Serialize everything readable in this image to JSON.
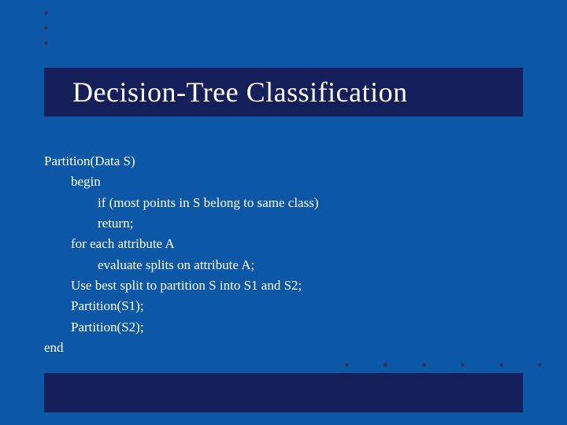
{
  "slide": {
    "background_color": "#0d57a7",
    "accent_color": "#15205a",
    "bullet_color": "#2a3a6a",
    "text_color": "#ffffff",
    "title": "Decision-Tree Classification",
    "title_fontsize": 36,
    "body_fontsize": 17,
    "lines": [
      {
        "text": "Partition(Data S)",
        "indent": 0
      },
      {
        "text": "begin",
        "indent": 1
      },
      {
        "text": "if (most points in S belong to same class)",
        "indent": 2
      },
      {
        "text": "return;",
        "indent": 2
      },
      {
        "text": "for each attribute A",
        "indent": 1
      },
      {
        "text": "evaluate splits on attribute A;",
        "indent": 2
      },
      {
        "text": "Use best split to partition S into S1 and S2;",
        "indent": 1
      },
      {
        "text": "Partition(S1);",
        "indent": 1
      },
      {
        "text": "Partition(S2);",
        "indent": 1
      },
      {
        "text": "end",
        "indent": 0
      }
    ],
    "top_bullet_count": 3,
    "bottom_bullet_count": 6
  }
}
